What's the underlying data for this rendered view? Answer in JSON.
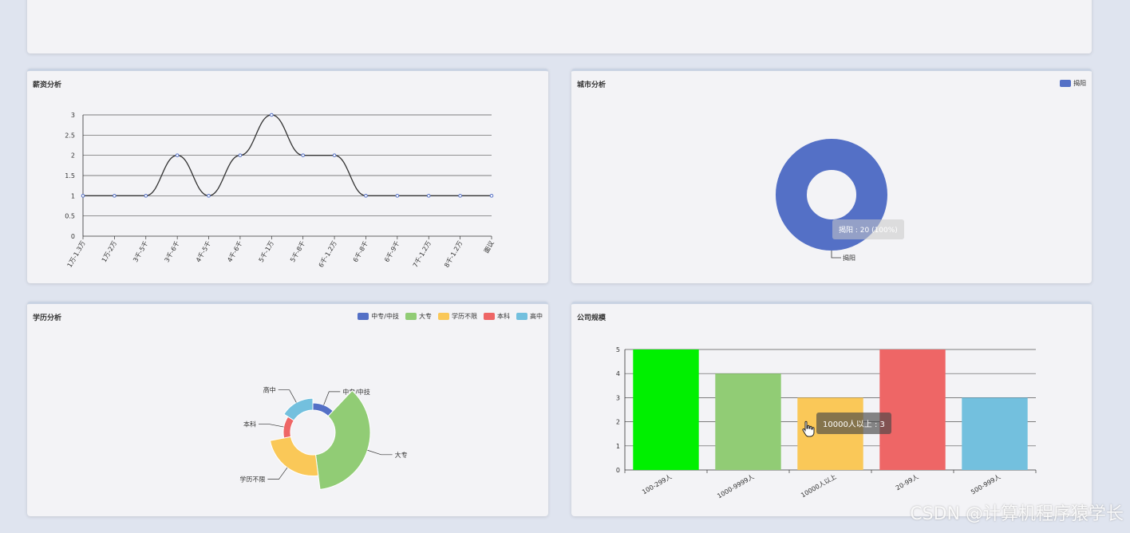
{
  "panels": {
    "salary": {
      "title": "薪资分析"
    },
    "city": {
      "title": "城市分析",
      "tooltip": "揭阳 : 20 (100%)"
    },
    "education": {
      "title": "学历分析"
    },
    "company": {
      "title": "公司规模",
      "tooltip": "10000人以上 : 3"
    }
  },
  "colors": {
    "blue": "#5470c6",
    "green": "#91cc75",
    "yellow": "#fac858",
    "red": "#ee6666",
    "cyan": "#73c0de",
    "lime": "#00f000"
  },
  "watermark": "CSDN @计算机程序猿学长",
  "chart_data": [
    {
      "type": "line",
      "title": "薪资分析",
      "categories": [
        "1万-1.3万",
        "1万-2万",
        "3千-5千",
        "3千-6千",
        "4千-5千",
        "4千-6千",
        "5千-1万",
        "5千-8千",
        "6千-1.2万",
        "6千-8千",
        "6千-9千",
        "7千-1.2万",
        "8千-1.2万",
        "面议"
      ],
      "values": [
        1,
        1,
        1,
        2,
        1,
        2,
        3,
        2,
        2,
        1,
        1,
        1,
        1,
        1
      ],
      "ylim": [
        0,
        3
      ],
      "yticks": [
        "0",
        "0.5",
        "1",
        "1.5",
        "2",
        "2.5",
        "3"
      ],
      "smooth": true,
      "grid": true
    },
    {
      "type": "pie",
      "title": "城市分析",
      "legend": [
        "揭阳"
      ],
      "labels": [
        "揭阳"
      ],
      "values": [
        20
      ],
      "donut": true,
      "legend_position": "top-right"
    },
    {
      "type": "pie",
      "title": "学历分析",
      "legend": [
        "中专/中技",
        "大专",
        "学历不限",
        "本科",
        "高中"
      ],
      "labels": [
        "中专/中技",
        "大专",
        "学历不限",
        "本科",
        "高中"
      ],
      "values": [
        3,
        9,
        6,
        3,
        4
      ],
      "rose": true,
      "legend_position": "top-right"
    },
    {
      "type": "bar",
      "title": "公司规模",
      "categories": [
        "100-299人",
        "1000-9999人",
        "10000人以上",
        "20-99人",
        "500-999人"
      ],
      "values": [
        5,
        4,
        3,
        5,
        3
      ],
      "ylim": [
        0,
        5
      ],
      "yticks": [
        "0",
        "1",
        "2",
        "3",
        "4",
        "5"
      ],
      "grid": true
    }
  ]
}
